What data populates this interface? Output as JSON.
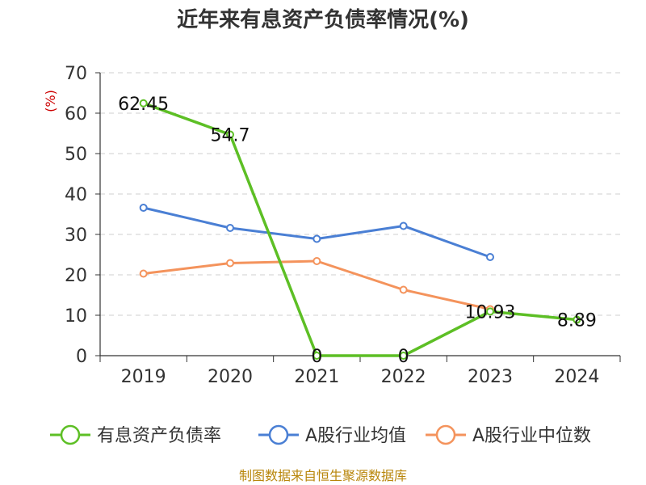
{
  "chart_data": {
    "type": "line",
    "title": "近年来有息资产负债率情况(%)",
    "ylabel": "(%)",
    "xlabel": "",
    "categories": [
      "2019",
      "2020",
      "2021",
      "2022",
      "2023",
      "2024"
    ],
    "ylim": [
      0,
      70
    ],
    "yticks": [
      0,
      10,
      20,
      30,
      40,
      50,
      60,
      70
    ],
    "grid": true,
    "legend_position": "bottom",
    "series": [
      {
        "name": "有息资产负债率",
        "color": "#5dbf25",
        "values": [
          62.45,
          54.7,
          0,
          0,
          10.93,
          8.89
        ],
        "labels": [
          "62.45",
          "54.7",
          "0",
          "0",
          "10.93",
          "8.89"
        ]
      },
      {
        "name": "A股行业均值",
        "color": "#4a7fd4",
        "values": [
          36.6,
          31.6,
          28.9,
          32.1,
          24.4,
          null
        ],
        "labels": null
      },
      {
        "name": "A股行业中位数",
        "color": "#f4935c",
        "values": [
          20.3,
          22.9,
          23.4,
          16.3,
          11.5,
          null
        ],
        "labels": null
      }
    ]
  },
  "source": "制图数据来自恒生聚源数据库"
}
